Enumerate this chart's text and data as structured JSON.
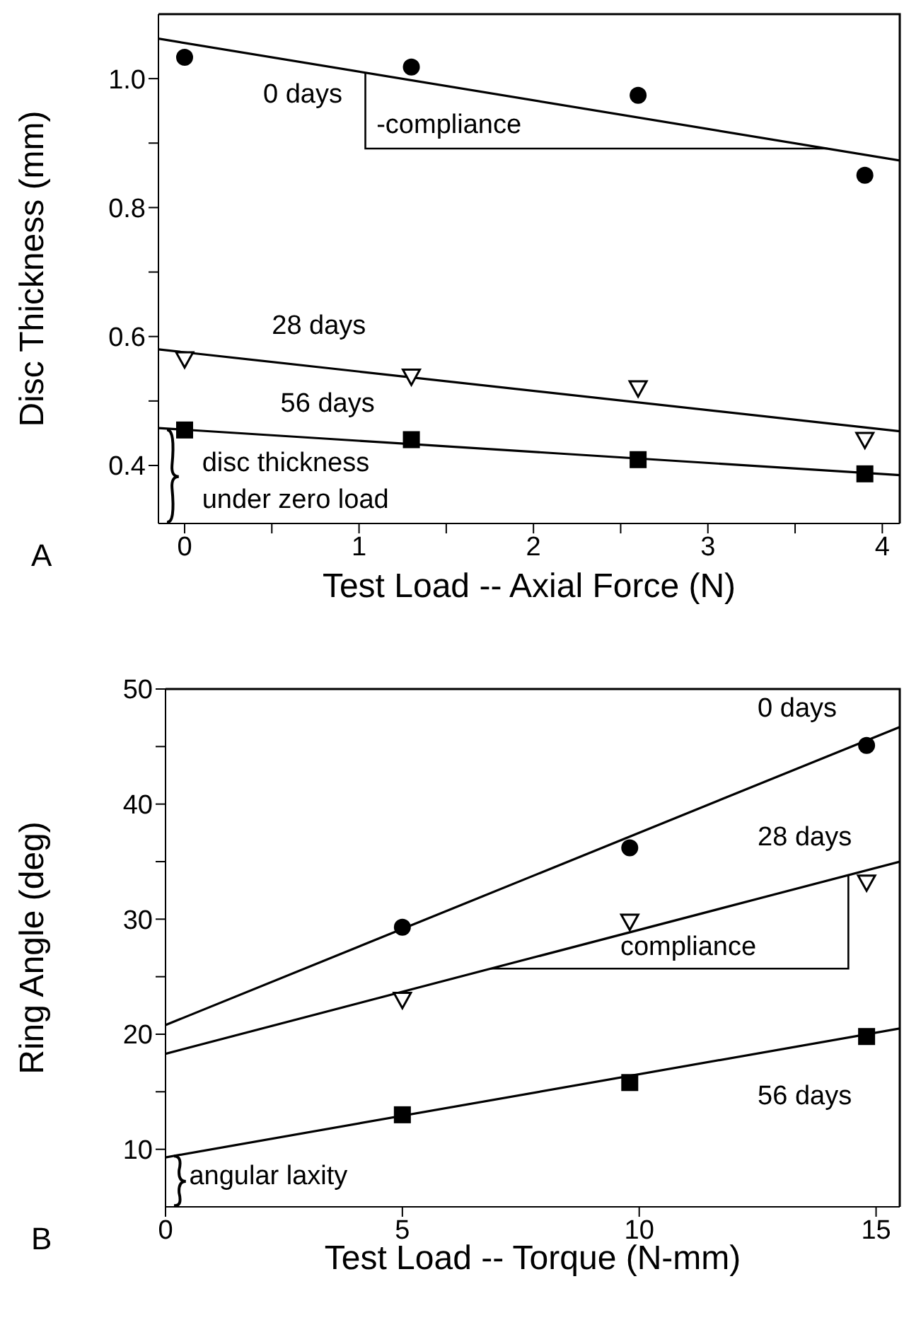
{
  "chart_data": [
    {
      "type": "scatter",
      "xlabel": "Test Load -- Axial Force (N)",
      "ylabel": "Disc Thickness (mm)",
      "legend": false,
      "grid": false,
      "xlim": [
        -0.15,
        4.1
      ],
      "xticks": [
        0,
        {
          "value": 0.5,
          "label": null
        },
        1,
        {
          "value": 1.5,
          "label": null
        },
        2,
        {
          "value": 2.5,
          "label": null
        },
        3,
        {
          "value": 3.5,
          "label": null
        },
        4
      ],
      "ylim": [
        0.31,
        1.1
      ],
      "yticks": [
        0.4,
        {
          "value": 0.5,
          "label": null
        },
        0.6,
        {
          "value": 0.7,
          "label": null
        },
        0.8,
        {
          "value": 0.9,
          "label": null
        },
        {
          "value": 1,
          "label": "1.0"
        }
      ],
      "series": [
        {
          "type": "scatter",
          "color": "#000000",
          "marker": "circle",
          "x": [
            0,
            1.3,
            2.6,
            3.9
          ],
          "values": [
            1.033,
            1.018,
            0.974,
            0.85
          ]
        },
        {
          "type": "scatter",
          "color": "#000000",
          "marker": "triangle",
          "x": [
            0,
            1.3,
            2.6,
            3.9
          ],
          "values": [
            0.565,
            0.538,
            0.52,
            0.44
          ]
        },
        {
          "type": "scatter",
          "color": "#000000",
          "marker": "square",
          "x": [
            0,
            1.3,
            2.6,
            3.9
          ],
          "values": [
            0.455,
            0.44,
            0.409,
            0.387
          ]
        },
        {
          "type": "line",
          "color": "#000000",
          "x": [
            -0.15,
            4.1
          ],
          "values": [
            1.062,
            0.873
          ]
        },
        {
          "type": "line",
          "color": "#000000",
          "x": [
            -0.15,
            4.1
          ],
          "values": [
            0.58,
            0.453
          ]
        },
        {
          "type": "line",
          "color": "#000000",
          "x": [
            -0.15,
            4.1
          ],
          "values": [
            0.458,
            0.385
          ]
        }
      ],
      "annotations": [
        "0 days",
        "28 days",
        "56 days",
        "-compliance",
        "disc thickness",
        "under zero load",
        "A"
      ]
    },
    {
      "type": "scatter",
      "xlabel": "Test Load -- Torque (N-mm)",
      "ylabel": "Ring Angle (deg)",
      "legend": false,
      "grid": false,
      "xlim": [
        0,
        15.5
      ],
      "xticks": [
        0,
        5,
        10,
        15
      ],
      "ylim": [
        5,
        50
      ],
      "yticks": [
        10,
        {
          "value": 15,
          "label": null
        },
        20,
        {
          "value": 25,
          "label": null
        },
        30,
        {
          "value": 35,
          "label": null
        },
        40,
        {
          "value": 45,
          "label": null
        },
        50
      ],
      "series": [
        {
          "type": "scatter",
          "color": "#000000",
          "marker": "circle",
          "x": [
            5,
            9.8,
            14.8
          ],
          "values": [
            29.3,
            36.2,
            45.1
          ]
        },
        {
          "type": "scatter",
          "color": "#000000",
          "marker": "triangle",
          "x": [
            5,
            9.8,
            14.8
          ],
          "values": [
            23.0,
            29.8,
            33.2
          ]
        },
        {
          "type": "scatter",
          "color": "#000000",
          "marker": "square",
          "x": [
            5,
            9.8,
            14.8
          ],
          "values": [
            13.0,
            15.8,
            19.8
          ]
        },
        {
          "type": "line",
          "color": "#000000",
          "x": [
            0,
            15.5
          ],
          "values": [
            20.8,
            46.7
          ]
        },
        {
          "type": "line",
          "color": "#000000",
          "x": [
            0,
            15.5
          ],
          "values": [
            18.3,
            35.0
          ]
        },
        {
          "type": "line",
          "color": "#000000",
          "x": [
            0,
            15.5
          ],
          "values": [
            9.3,
            20.5
          ]
        }
      ],
      "annotations": [
        "0 days",
        "28 days",
        "56 days",
        "compliance",
        "angular laxity",
        "B"
      ]
    }
  ]
}
